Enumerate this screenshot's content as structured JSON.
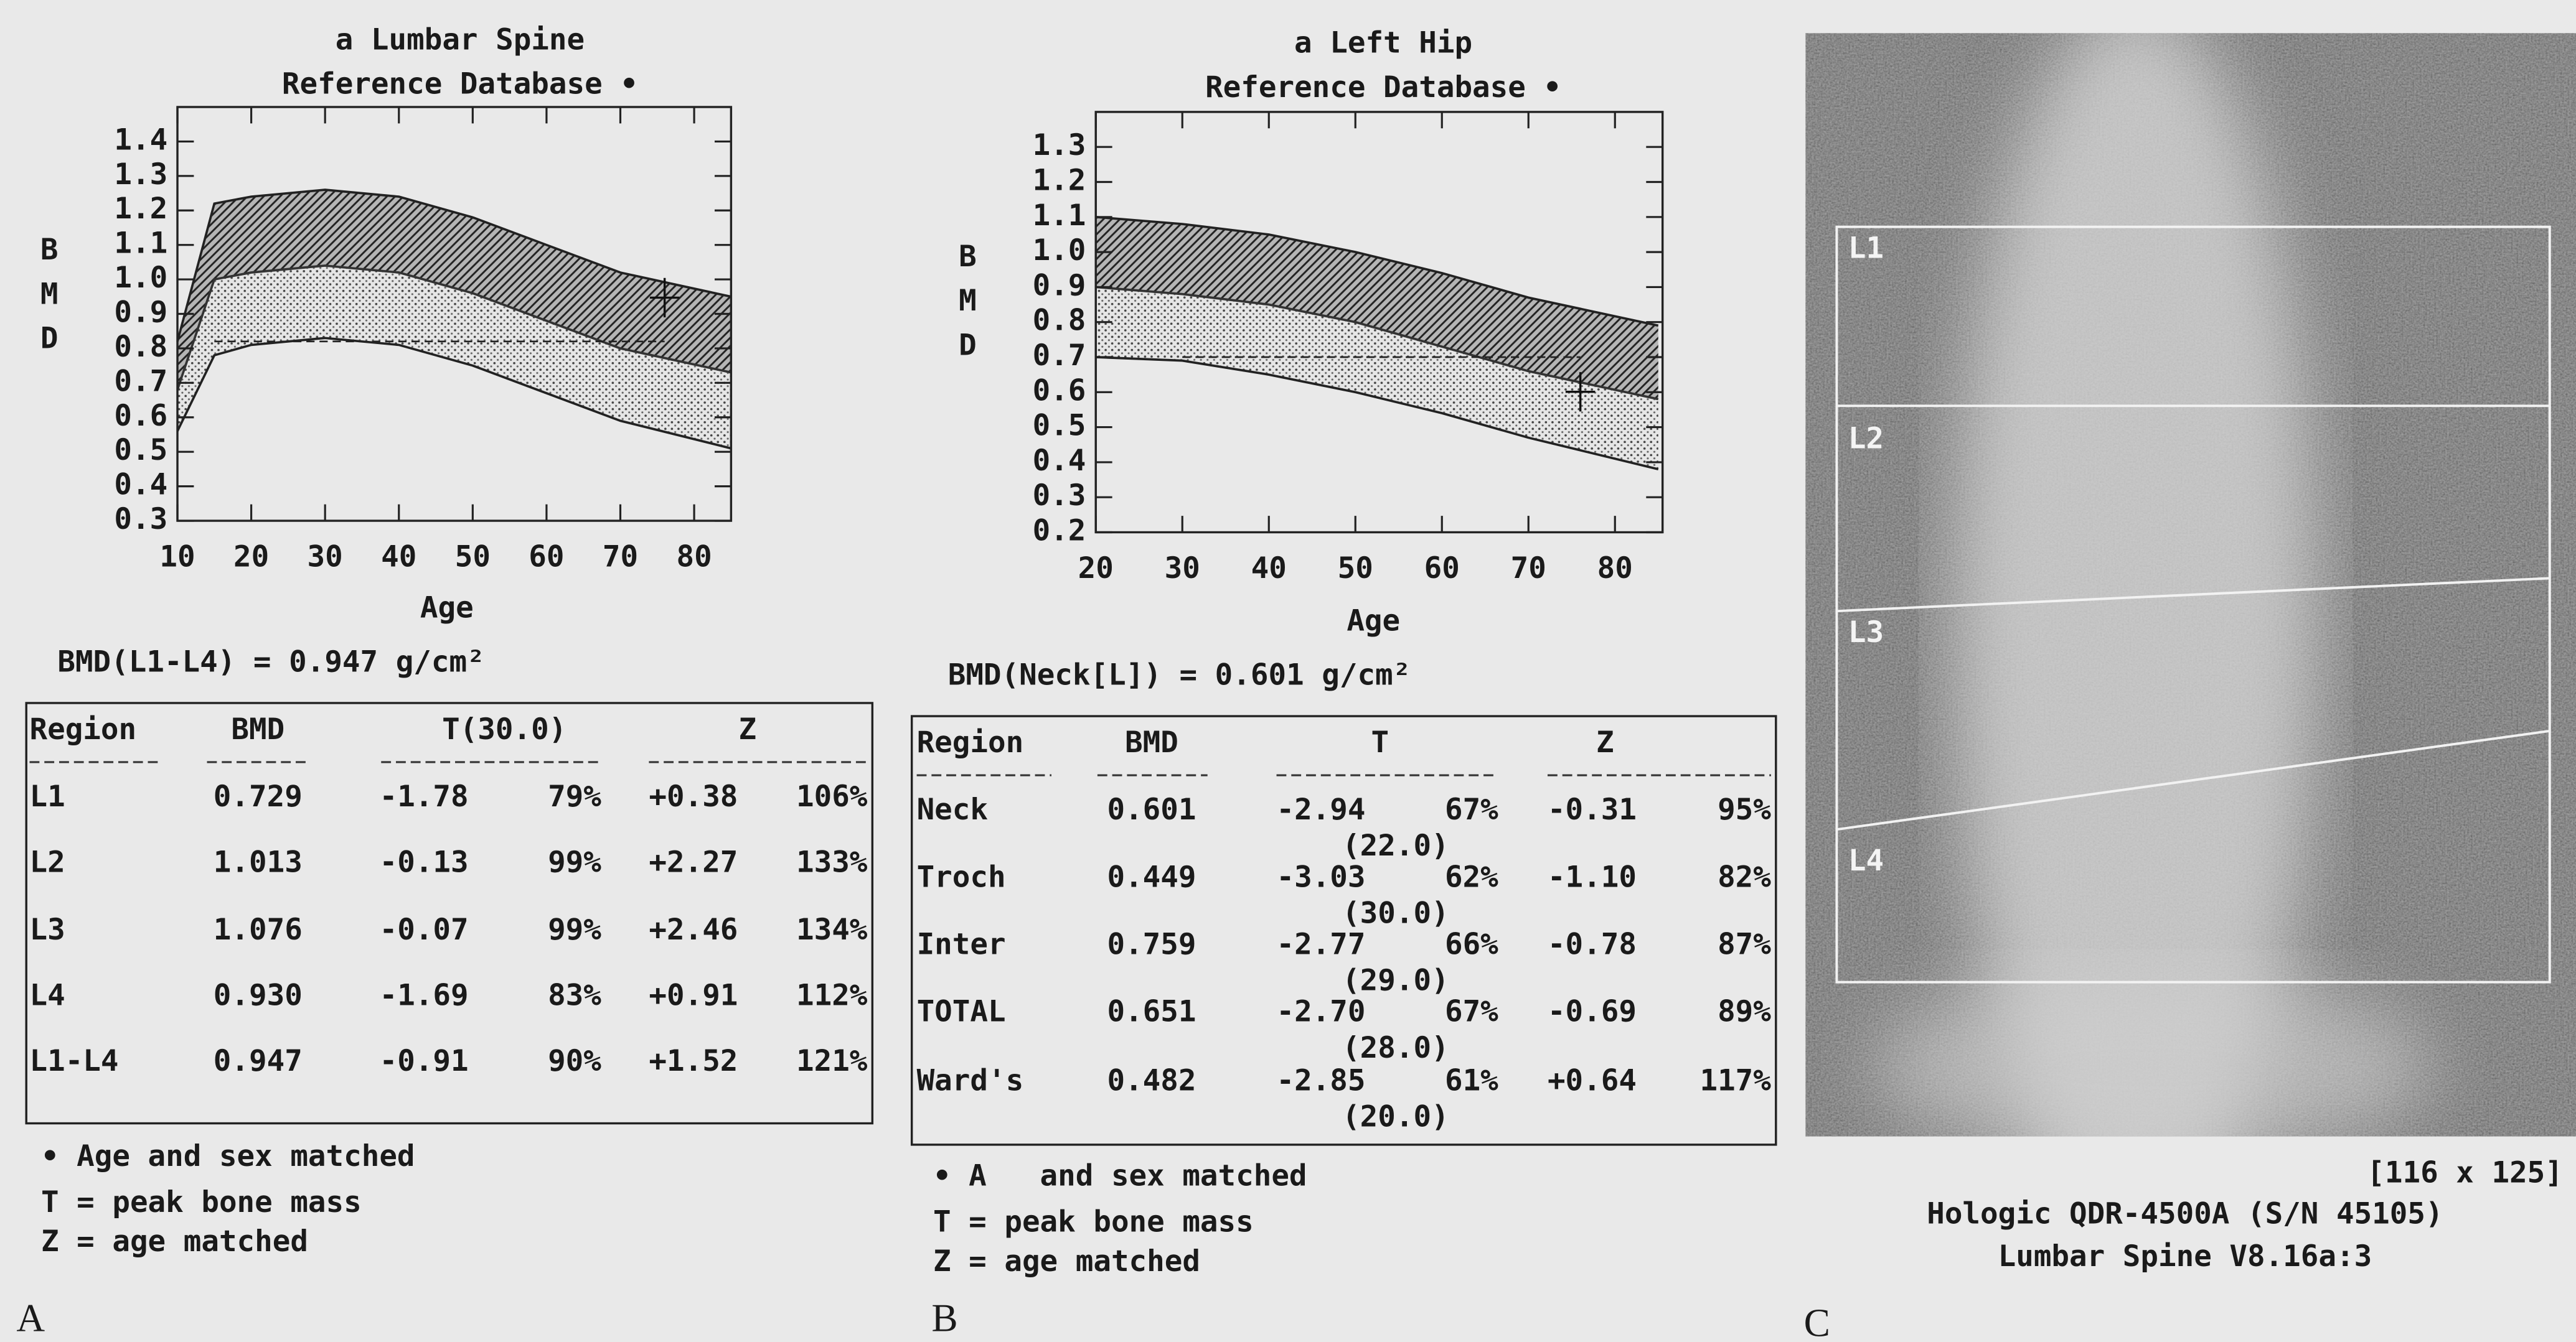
{
  "chart_data": [
    {
      "type": "line",
      "title": "a Lumbar Spine",
      "subtitle": "Reference Database •",
      "y_label": [
        "B",
        "M",
        "D"
      ],
      "x_label": "Age",
      "x": [
        10,
        15,
        20,
        30,
        40,
        50,
        60,
        70,
        85
      ],
      "series": [
        {
          "color": "#222222",
          "values": [
            0.82,
            1.22,
            1.24,
            1.26,
            1.24,
            1.18,
            1.1,
            1.02,
            0.95
          ]
        },
        {
          "color": "#333333",
          "values": [
            0.68,
            1.0,
            1.02,
            1.04,
            1.02,
            0.96,
            0.88,
            0.8,
            0.73
          ]
        },
        {
          "color": "#222222",
          "values": [
            0.56,
            0.78,
            0.81,
            0.83,
            0.81,
            0.75,
            0.67,
            0.59,
            0.51
          ]
        }
      ],
      "reference_line": 0.82,
      "marker": {
        "x": 76,
        "y": 0.947
      },
      "xlim": [
        10,
        85
      ],
      "ylim": [
        0.3,
        1.5
      ],
      "xticks": [
        10,
        20,
        30,
        40,
        50,
        60,
        70,
        80
      ],
      "yticks": [
        0.3,
        0.4,
        0.5,
        0.6,
        0.7,
        0.8,
        0.9,
        {
          "value": 1,
          "label": "1.0"
        },
        1.1,
        1.2,
        1.3,
        1.4
      ]
    },
    {
      "type": "line",
      "title": "a Left Hip",
      "subtitle": "Reference Database •",
      "y_label": [
        "B",
        "M",
        "D"
      ],
      "x_label": "Age",
      "x": [
        20,
        30,
        40,
        50,
        60,
        70,
        85
      ],
      "series": [
        {
          "color": "#222222",
          "values": [
            1.1,
            1.08,
            1.05,
            1.0,
            0.94,
            0.87,
            0.79
          ]
        },
        {
          "color": "#333333",
          "values": [
            0.9,
            0.88,
            0.85,
            0.8,
            0.73,
            0.66,
            0.58
          ]
        },
        {
          "color": "#222222",
          "values": [
            0.7,
            0.69,
            0.65,
            0.6,
            0.54,
            0.47,
            0.38
          ]
        }
      ],
      "reference_line": 0.7,
      "marker": {
        "x": 76,
        "y": 0.601
      },
      "xlim": [
        20,
        85.5
      ],
      "ylim": [
        0.2,
        1.4
      ],
      "xticks": [
        20,
        30,
        40,
        50,
        60,
        70,
        80
      ],
      "yticks": [
        0.2,
        0.3,
        0.4,
        0.5,
        0.6,
        0.7,
        0.8,
        0.9,
        {
          "value": 1,
          "label": "1.0"
        },
        1.1,
        1.2,
        1.3
      ]
    }
  ],
  "spine": {
    "bmd_line": "BMD(L1-L4) = 0.947 g/cm²",
    "table": {
      "headers": [
        "Region",
        "BMD",
        "T(30.0)",
        "Z"
      ],
      "rows": [
        [
          "L1",
          "0.729",
          "-1.78",
          "79%",
          "+0.38",
          "106%"
        ],
        [
          "L2",
          "1.013",
          "-0.13",
          "99%",
          "+2.27",
          "133%"
        ],
        [
          "L3",
          "1.076",
          "-0.07",
          "99%",
          "+2.46",
          "134%"
        ],
        [
          "L4",
          "0.930",
          "-1.69",
          "83%",
          "+0.91",
          "112%"
        ],
        [
          "L1-L4",
          "0.947",
          "-0.91",
          "90%",
          "+1.52",
          "121%"
        ]
      ]
    },
    "notes": [
      "• Age and sex matched",
      "T = peak bone mass",
      "Z = age matched"
    ],
    "panel": "A"
  },
  "hip": {
    "bmd_line": "BMD(Neck[L]) = 0.601 g/cm²",
    "table": {
      "headers": [
        "Region",
        "BMD",
        "T",
        "Z"
      ],
      "rows": [
        [
          "Neck",
          "0.601",
          "-2.94",
          "67%",
          "(22.0)",
          "-0.31",
          "95%"
        ],
        [
          "Troch",
          "0.449",
          "-3.03",
          "62%",
          "(30.0)",
          "-1.10",
          "82%"
        ],
        [
          "Inter",
          "0.759",
          "-2.77",
          "66%",
          "(29.0)",
          "-0.78",
          "87%"
        ],
        [
          "TOTAL",
          "0.651",
          "-2.70",
          "67%",
          "(28.0)",
          "-0.69",
          "89%"
        ],
        [
          "Ward's",
          "0.482",
          "-2.85",
          "61%",
          "(20.0)",
          "+0.64",
          "117%"
        ]
      ]
    },
    "notes": [
      "• A   and sex matched",
      "T = peak bone mass",
      "Z = age matched"
    ],
    "panel": "B"
  },
  "scan": {
    "labels": [
      "L1",
      "L2",
      "L3",
      "L4"
    ],
    "size": "[116 x 125]",
    "device": "Hologic QDR-4500A (S/N 45105)",
    "version": "Lumbar Spine V8.16a:3",
    "panel": "C"
  }
}
